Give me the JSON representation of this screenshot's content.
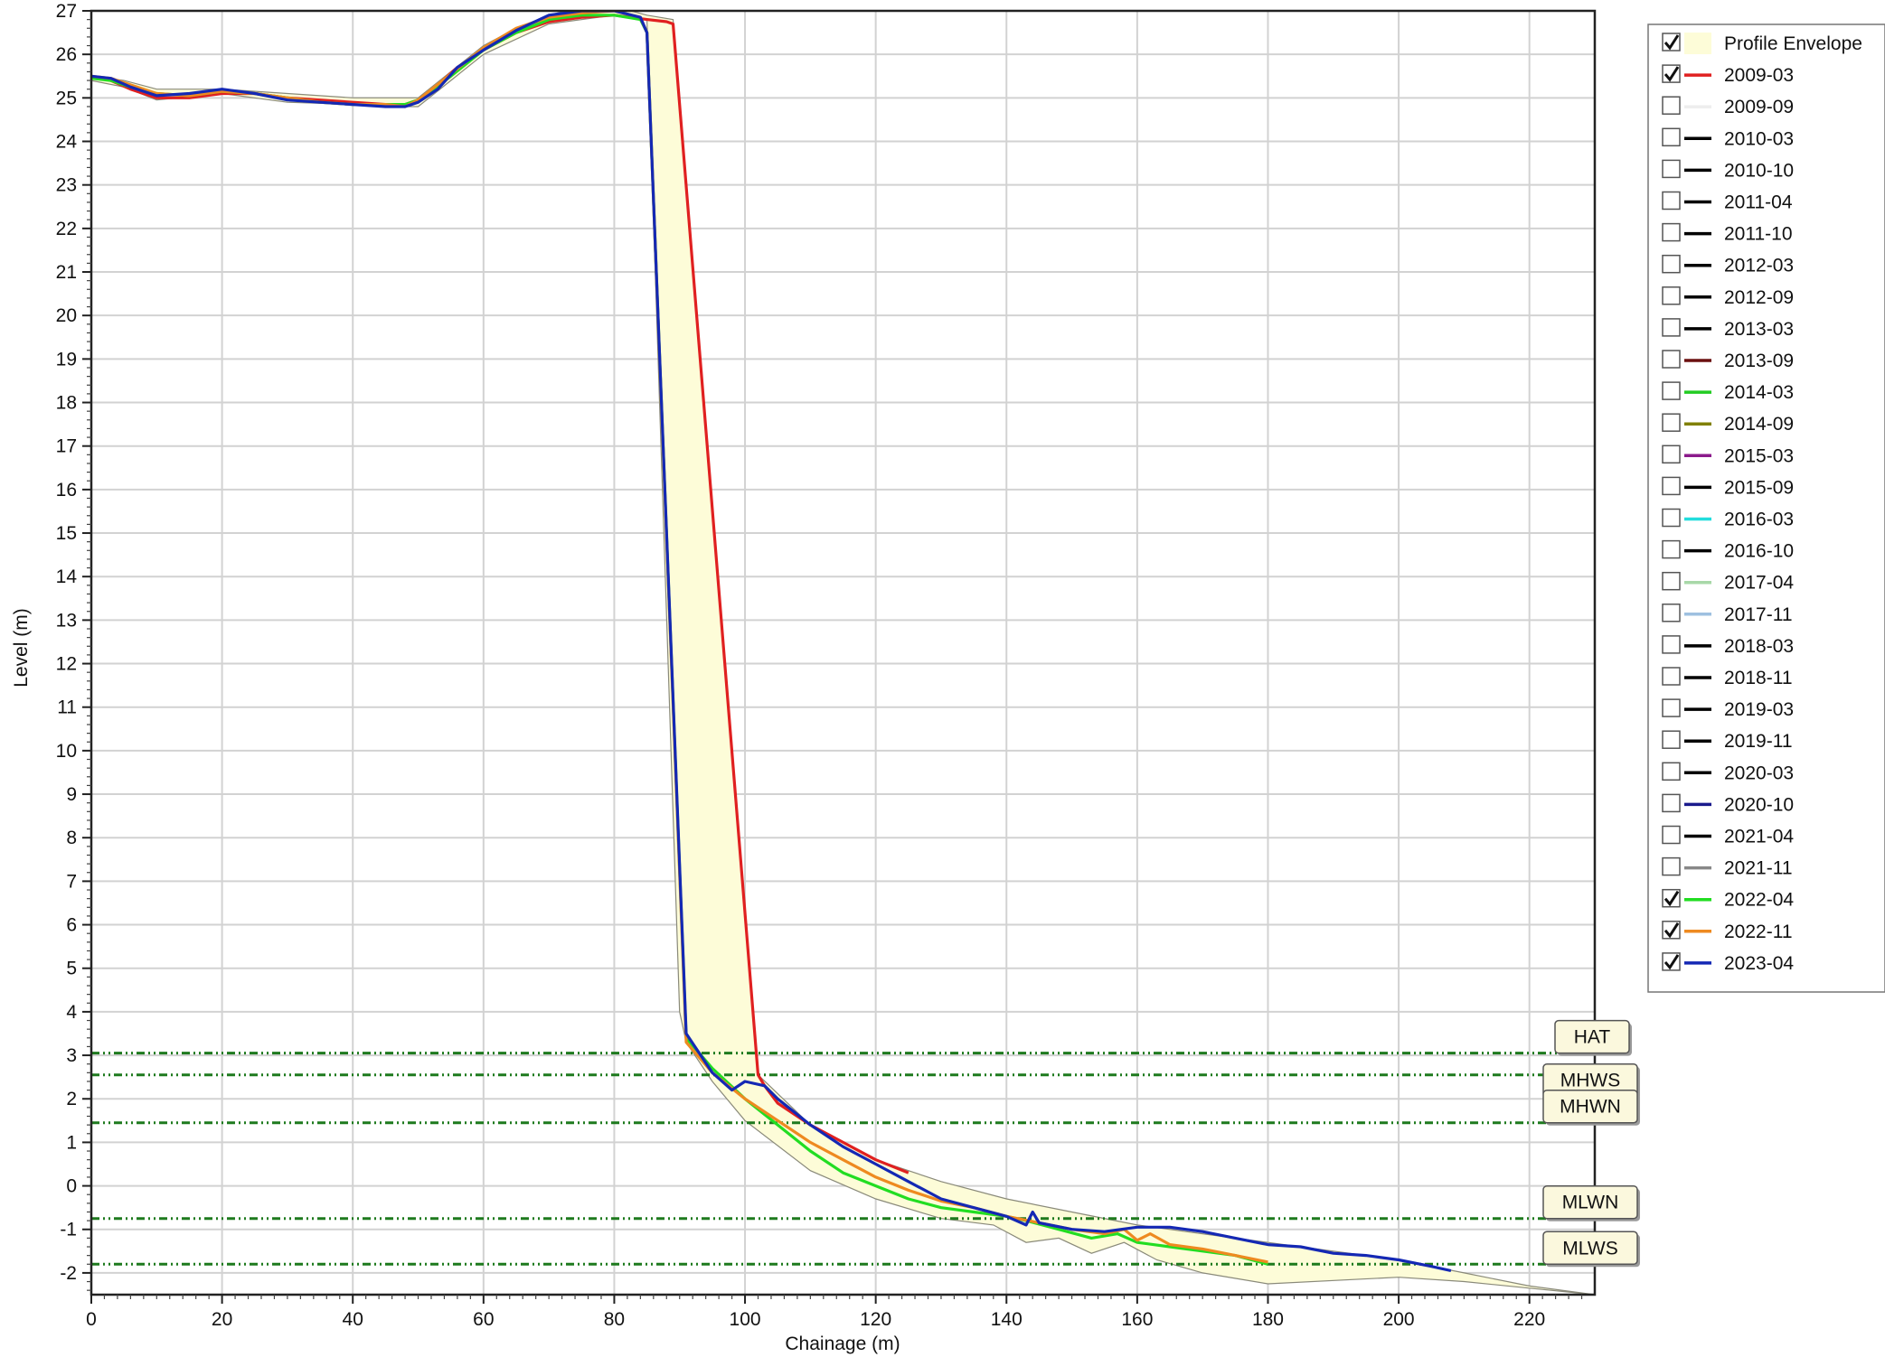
{
  "chart_data": {
    "type": "line",
    "xlabel": "Chainage (m)",
    "ylabel": "Level (m)",
    "xlim": [
      0,
      230
    ],
    "ylim": [
      -2.5,
      27
    ],
    "x_ticks": [
      0,
      20,
      40,
      60,
      80,
      100,
      120,
      140,
      160,
      180,
      200,
      220
    ],
    "y_ticks": [
      -2,
      -1,
      0,
      1,
      2,
      3,
      4,
      5,
      6,
      7,
      8,
      9,
      10,
      11,
      12,
      13,
      14,
      15,
      16,
      17,
      18,
      19,
      20,
      21,
      22,
      23,
      24,
      25,
      26,
      27
    ],
    "grid": true,
    "legend_position": "right",
    "tide_levels": [
      {
        "label": "HAT",
        "value": 3.05
      },
      {
        "label": "MHWS",
        "value": 2.55
      },
      {
        "label": "MHWN",
        "value": 1.45
      },
      {
        "label": "MLWN",
        "value": -0.75
      },
      {
        "label": "MLWS",
        "value": -1.8
      }
    ],
    "envelope": {
      "name": "Profile Envelope",
      "color": "#fdfcd8",
      "checked": true,
      "upper": [
        [
          0,
          25.5
        ],
        [
          5,
          25.4
        ],
        [
          10,
          25.2
        ],
        [
          20,
          25.2
        ],
        [
          30,
          25.1
        ],
        [
          40,
          25
        ],
        [
          48,
          25
        ],
        [
          50,
          25
        ],
        [
          55,
          25.6
        ],
        [
          60,
          26.2
        ],
        [
          65,
          26.6
        ],
        [
          70,
          26.9
        ],
        [
          75,
          27.1
        ],
        [
          80,
          27.1
        ],
        [
          85,
          26.9
        ],
        [
          89,
          26.8
        ],
        [
          102,
          2.55
        ],
        [
          110,
          1.4
        ],
        [
          120,
          0.6
        ],
        [
          130,
          0.1
        ],
        [
          140,
          -0.3
        ],
        [
          150,
          -0.6
        ],
        [
          160,
          -0.9
        ],
        [
          170,
          -1.1
        ],
        [
          180,
          -1.3
        ],
        [
          190,
          -1.5
        ],
        [
          200,
          -1.7
        ],
        [
          210,
          -2.0
        ],
        [
          220,
          -2.3
        ],
        [
          230,
          -2.5
        ]
      ],
      "lower": [
        [
          230,
          -2.5
        ],
        [
          220,
          -2.35
        ],
        [
          210,
          -2.2
        ],
        [
          200,
          -2.1
        ],
        [
          180,
          -2.25
        ],
        [
          170,
          -2.0
        ],
        [
          163,
          -1.7
        ],
        [
          158,
          -1.3
        ],
        [
          153,
          -1.55
        ],
        [
          148,
          -1.2
        ],
        [
          143,
          -1.3
        ],
        [
          138,
          -0.9
        ],
        [
          130,
          -0.75
        ],
        [
          120,
          -0.3
        ],
        [
          110,
          0.35
        ],
        [
          100,
          1.5
        ],
        [
          95,
          2.4
        ],
        [
          91,
          3.3
        ],
        [
          90,
          4.0
        ],
        [
          85,
          26.8
        ],
        [
          80,
          26.9
        ],
        [
          70,
          26.7
        ],
        [
          60,
          26.0
        ],
        [
          55,
          25.4
        ],
        [
          50,
          24.8
        ],
        [
          45,
          24.8
        ],
        [
          40,
          24.85
        ],
        [
          30,
          24.9
        ],
        [
          20,
          25.1
        ],
        [
          10,
          24.95
        ],
        [
          5,
          25.25
        ],
        [
          0,
          25.4
        ]
      ]
    },
    "series": [
      {
        "name": "2009-03",
        "color": "#e02020",
        "checked": true,
        "x": [
          0,
          3,
          6,
          10,
          15,
          20,
          25,
          30,
          35,
          40,
          45,
          48,
          50,
          53,
          56,
          60,
          65,
          70,
          75,
          80,
          85,
          88,
          89,
          102,
          103,
          105,
          110,
          115,
          120,
          125
        ],
        "y": [
          25.5,
          25.4,
          25.2,
          25,
          25,
          25.1,
          25.1,
          25,
          24.95,
          24.9,
          24.85,
          24.85,
          24.95,
          25.3,
          25.7,
          26.1,
          26.5,
          26.75,
          26.85,
          26.9,
          26.8,
          26.75,
          26.7,
          2.55,
          2.3,
          1.9,
          1.4,
          1.0,
          0.6,
          0.3
        ]
      },
      {
        "name": "2009-09",
        "color": "#eeeeee",
        "checked": false,
        "x": [],
        "y": []
      },
      {
        "name": "2010-03",
        "color": "#000000",
        "checked": false,
        "x": [],
        "y": []
      },
      {
        "name": "2010-10",
        "color": "#000000",
        "checked": false,
        "x": [],
        "y": []
      },
      {
        "name": "2011-04",
        "color": "#000000",
        "checked": false,
        "x": [],
        "y": []
      },
      {
        "name": "2011-10",
        "color": "#000000",
        "checked": false,
        "x": [],
        "y": []
      },
      {
        "name": "2012-03",
        "color": "#000000",
        "checked": false,
        "x": [],
        "y": []
      },
      {
        "name": "2012-09",
        "color": "#000000",
        "checked": false,
        "x": [],
        "y": []
      },
      {
        "name": "2013-03",
        "color": "#000000",
        "checked": false,
        "x": [],
        "y": []
      },
      {
        "name": "2013-09",
        "color": "#6b1010",
        "checked": false,
        "x": [],
        "y": []
      },
      {
        "name": "2014-03",
        "color": "#22cc22",
        "checked": false,
        "x": [],
        "y": []
      },
      {
        "name": "2014-09",
        "color": "#808000",
        "checked": false,
        "x": [],
        "y": []
      },
      {
        "name": "2015-03",
        "color": "#8b1a8b",
        "checked": false,
        "x": [],
        "y": []
      },
      {
        "name": "2015-09",
        "color": "#000000",
        "checked": false,
        "x": [],
        "y": []
      },
      {
        "name": "2016-03",
        "color": "#22dddd",
        "checked": false,
        "x": [],
        "y": []
      },
      {
        "name": "2016-10",
        "color": "#000000",
        "checked": false,
        "x": [],
        "y": []
      },
      {
        "name": "2017-04",
        "color": "#a8d8a8",
        "checked": false,
        "x": [],
        "y": []
      },
      {
        "name": "2017-11",
        "color": "#9ec0e0",
        "checked": false,
        "x": [],
        "y": []
      },
      {
        "name": "2018-03",
        "color": "#000000",
        "checked": false,
        "x": [],
        "y": []
      },
      {
        "name": "2018-11",
        "color": "#000000",
        "checked": false,
        "x": [],
        "y": []
      },
      {
        "name": "2019-03",
        "color": "#000000",
        "checked": false,
        "x": [],
        "y": []
      },
      {
        "name": "2019-11",
        "color": "#000000",
        "checked": false,
        "x": [],
        "y": []
      },
      {
        "name": "2020-03",
        "color": "#000000",
        "checked": false,
        "x": [],
        "y": []
      },
      {
        "name": "2020-10",
        "color": "#1a1a8c",
        "checked": false,
        "x": [],
        "y": []
      },
      {
        "name": "2021-04",
        "color": "#000000",
        "checked": false,
        "x": [],
        "y": []
      },
      {
        "name": "2021-11",
        "color": "#888888",
        "checked": false,
        "x": [],
        "y": []
      },
      {
        "name": "2022-04",
        "color": "#22dd22",
        "checked": true,
        "x": [
          0,
          3,
          6,
          10,
          15,
          20,
          25,
          30,
          35,
          40,
          45,
          48,
          50,
          55,
          60,
          65,
          70,
          75,
          80,
          84,
          85,
          91,
          95,
          100,
          105,
          110,
          115,
          120,
          125,
          130,
          135,
          140,
          143,
          148,
          153,
          157,
          160,
          165,
          170,
          175,
          180
        ],
        "y": [
          25.45,
          25.4,
          25.25,
          25.1,
          25.05,
          25.15,
          25.1,
          25,
          24.9,
          24.85,
          24.85,
          24.85,
          24.95,
          25.5,
          26.1,
          26.5,
          26.8,
          26.9,
          26.9,
          26.8,
          26.5,
          3.4,
          2.7,
          2.0,
          1.4,
          0.8,
          0.3,
          0.0,
          -0.3,
          -0.5,
          -0.6,
          -0.7,
          -0.8,
          -1.0,
          -1.2,
          -1.1,
          -1.3,
          -1.4,
          -1.5,
          -1.6,
          -1.8
        ]
      },
      {
        "name": "2022-11",
        "color": "#ee8a20",
        "checked": true,
        "x": [
          0,
          3,
          6,
          10,
          15,
          20,
          25,
          30,
          35,
          40,
          45,
          48,
          50,
          55,
          60,
          65,
          70,
          75,
          80,
          84,
          85,
          91,
          95,
          100,
          105,
          110,
          115,
          120,
          125,
          130,
          135,
          140,
          145,
          150,
          155,
          158,
          160,
          162,
          165,
          170,
          175,
          180
        ],
        "y": [
          25.5,
          25.45,
          25.3,
          25.1,
          25.05,
          25.15,
          25.1,
          25,
          24.9,
          24.85,
          24.85,
          24.8,
          24.95,
          25.55,
          26.15,
          26.6,
          26.85,
          26.95,
          27.0,
          26.85,
          26.5,
          3.3,
          2.6,
          2.0,
          1.5,
          1.0,
          0.6,
          0.2,
          -0.1,
          -0.35,
          -0.5,
          -0.7,
          -0.85,
          -1.0,
          -1.1,
          -1.0,
          -1.25,
          -1.1,
          -1.35,
          -1.45,
          -1.6,
          -1.75
        ]
      },
      {
        "name": "2023-04",
        "color": "#1428b4",
        "checked": true,
        "x": [
          0,
          3,
          6,
          10,
          15,
          20,
          25,
          30,
          35,
          40,
          45,
          48,
          50,
          53,
          56,
          60,
          65,
          70,
          75,
          80,
          84,
          85,
          91,
          95,
          98,
          100,
          103,
          105,
          110,
          115,
          120,
          125,
          130,
          135,
          140,
          143,
          144,
          145,
          150,
          155,
          160,
          165,
          170,
          175,
          180,
          185,
          190,
          195,
          200,
          205,
          208
        ],
        "y": [
          25.5,
          25.45,
          25.25,
          25.05,
          25.1,
          25.2,
          25.1,
          24.95,
          24.9,
          24.85,
          24.8,
          24.8,
          24.9,
          25.2,
          25.7,
          26.1,
          26.55,
          26.9,
          27.0,
          27.0,
          26.85,
          26.5,
          3.5,
          2.6,
          2.2,
          2.4,
          2.3,
          2.0,
          1.4,
          0.9,
          0.5,
          0.1,
          -0.3,
          -0.5,
          -0.7,
          -0.9,
          -0.6,
          -0.85,
          -1.0,
          -1.05,
          -0.95,
          -0.95,
          -1.05,
          -1.2,
          -1.35,
          -1.4,
          -1.55,
          -1.6,
          -1.7,
          -1.85,
          -1.95
        ]
      }
    ]
  }
}
